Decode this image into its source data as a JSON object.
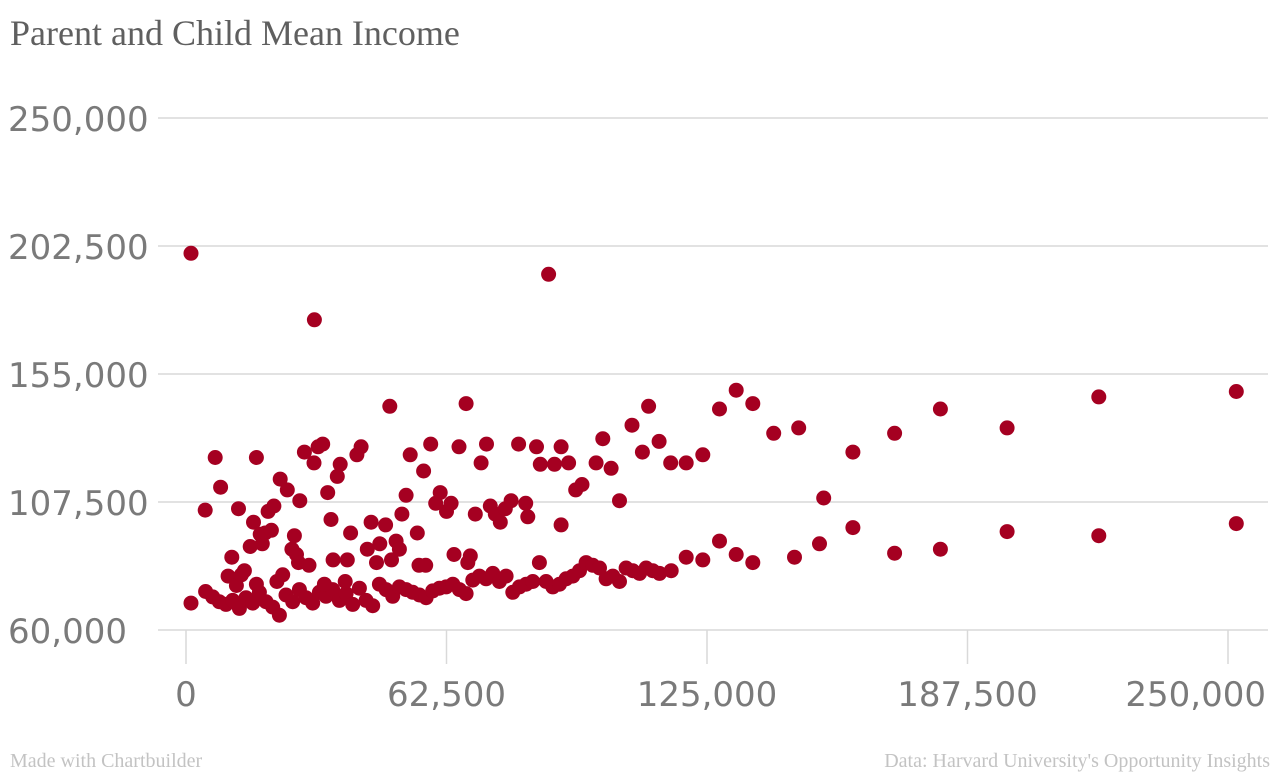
{
  "title": "Parent and Child Mean Income",
  "credit": "Made with Chartbuilder",
  "source": "Data: Harvard University's Opportunity Insights",
  "colors": {
    "point": "#a50021",
    "grid": "#d9d9d9",
    "text": "#7a7a7a"
  },
  "chart_data": {
    "type": "scatter",
    "title": "Parent and Child Mean Income",
    "xlabel": "",
    "ylabel": "",
    "xlim": [
      0,
      250000
    ],
    "ylim": [
      60000,
      250000
    ],
    "x_ticks": [
      0,
      62500,
      125000,
      187500,
      250000
    ],
    "y_ticks": [
      60000,
      107500,
      155000,
      202500,
      250000
    ],
    "x_tick_labels": [
      "0",
      "62,500",
      "125,000",
      "187,500",
      "250,000"
    ],
    "y_tick_labels": [
      "60,000",
      "107,500",
      "155,000",
      "202,500",
      "250,000"
    ],
    "grid": "horizontal",
    "legend": "none",
    "points": [
      [
        1200,
        199800
      ],
      [
        30800,
        175100
      ],
      [
        87000,
        192000
      ],
      [
        1200,
        70000
      ],
      [
        4700,
        74300
      ],
      [
        6400,
        72300
      ],
      [
        8000,
        70500
      ],
      [
        9600,
        69500
      ],
      [
        11200,
        71000
      ],
      [
        12800,
        68000
      ],
      [
        14400,
        72000
      ],
      [
        16000,
        70000
      ],
      [
        17600,
        74000
      ],
      [
        19200,
        70500
      ],
      [
        20800,
        68500
      ],
      [
        22400,
        65500
      ],
      [
        24000,
        73000
      ],
      [
        25600,
        70500
      ],
      [
        27200,
        75000
      ],
      [
        28800,
        72000
      ],
      [
        30400,
        70000
      ],
      [
        32000,
        74000
      ],
      [
        33600,
        72500
      ],
      [
        35200,
        75000
      ],
      [
        36800,
        71000
      ],
      [
        38400,
        73500
      ],
      [
        40000,
        69500
      ],
      [
        41600,
        75500
      ],
      [
        43200,
        71000
      ],
      [
        44800,
        69000
      ],
      [
        46400,
        77000
      ],
      [
        48000,
        75000
      ],
      [
        49600,
        72500
      ],
      [
        51200,
        76000
      ],
      [
        52800,
        75000
      ],
      [
        54400,
        74000
      ],
      [
        56000,
        73000
      ],
      [
        57600,
        72000
      ],
      [
        59200,
        74500
      ],
      [
        60800,
        75500
      ],
      [
        62400,
        76000
      ],
      [
        64000,
        77000
      ],
      [
        65600,
        75000
      ],
      [
        67200,
        73500
      ],
      [
        68800,
        78500
      ],
      [
        70400,
        80000
      ],
      [
        72000,
        79000
      ],
      [
        73600,
        81000
      ],
      [
        75200,
        78000
      ],
      [
        76800,
        80000
      ],
      [
        78400,
        74000
      ],
      [
        80000,
        76000
      ],
      [
        81600,
        77000
      ],
      [
        83200,
        78000
      ],
      [
        84800,
        85000
      ],
      [
        86400,
        78000
      ],
      [
        88000,
        76000
      ],
      [
        89600,
        77000
      ],
      [
        91200,
        79000
      ],
      [
        92800,
        80000
      ],
      [
        94400,
        82000
      ],
      [
        96000,
        85000
      ],
      [
        97600,
        84000
      ],
      [
        99200,
        83000
      ],
      [
        100800,
        79000
      ],
      [
        102400,
        80000
      ],
      [
        104000,
        78000
      ],
      [
        105600,
        83000
      ],
      [
        107200,
        82000
      ],
      [
        108800,
        81000
      ],
      [
        110400,
        83000
      ],
      [
        112000,
        82000
      ],
      [
        113600,
        81000
      ],
      [
        116400,
        82000
      ],
      [
        120000,
        87000
      ],
      [
        124000,
        86000
      ],
      [
        128000,
        93000
      ],
      [
        132000,
        88000
      ],
      [
        136000,
        85000
      ],
      [
        146000,
        87000
      ],
      [
        152000,
        92000
      ],
      [
        160000,
        98000
      ],
      [
        170000,
        88500
      ],
      [
        181000,
        90000
      ],
      [
        197000,
        96500
      ],
      [
        219000,
        95000
      ],
      [
        252000,
        99500
      ],
      [
        4600,
        104500
      ],
      [
        7000,
        124000
      ],
      [
        8300,
        113000
      ],
      [
        10100,
        80000
      ],
      [
        11000,
        87000
      ],
      [
        12100,
        76500
      ],
      [
        12600,
        105000
      ],
      [
        13300,
        80500
      ],
      [
        14000,
        82000
      ],
      [
        15400,
        91000
      ],
      [
        16200,
        100000
      ],
      [
        16900,
        77000
      ],
      [
        16900,
        124000
      ],
      [
        17800,
        95500
      ],
      [
        18300,
        92000
      ],
      [
        19000,
        96000
      ],
      [
        19700,
        104000
      ],
      [
        20500,
        97000
      ],
      [
        21100,
        106000
      ],
      [
        21800,
        78000
      ],
      [
        22600,
        116000
      ],
      [
        23200,
        80500
      ],
      [
        24300,
        112000
      ],
      [
        25400,
        90000
      ],
      [
        26000,
        95000
      ],
      [
        26500,
        88000
      ],
      [
        27000,
        85000
      ],
      [
        27300,
        108000
      ],
      [
        28400,
        126000
      ],
      [
        29500,
        84000
      ],
      [
        30700,
        122000
      ],
      [
        31700,
        128000
      ],
      [
        32800,
        129000
      ],
      [
        33200,
        77000
      ],
      [
        34000,
        111000
      ],
      [
        34800,
        101000
      ],
      [
        35300,
        86000
      ],
      [
        36300,
        117000
      ],
      [
        37000,
        121500
      ],
      [
        38200,
        78000
      ],
      [
        38700,
        86000
      ],
      [
        39500,
        96000
      ],
      [
        41000,
        125000
      ],
      [
        42000,
        128000
      ],
      [
        43500,
        90000
      ],
      [
        44400,
        100000
      ],
      [
        45700,
        85000
      ],
      [
        46500,
        92000
      ],
      [
        47900,
        99000
      ],
      [
        48900,
        143000
      ],
      [
        49300,
        86000
      ],
      [
        50400,
        93000
      ],
      [
        51200,
        90000
      ],
      [
        51800,
        103000
      ],
      [
        52800,
        110000
      ],
      [
        53800,
        125000
      ],
      [
        55500,
        96000
      ],
      [
        55900,
        84000
      ],
      [
        57000,
        119000
      ],
      [
        57500,
        84000
      ],
      [
        58700,
        129000
      ],
      [
        59900,
        107000
      ],
      [
        61000,
        111000
      ],
      [
        62500,
        104000
      ],
      [
        63600,
        107000
      ],
      [
        64300,
        88000
      ],
      [
        65500,
        128000
      ],
      [
        67200,
        144000
      ],
      [
        67600,
        85000
      ],
      [
        68200,
        87500
      ],
      [
        69400,
        103000
      ],
      [
        70800,
        122000
      ],
      [
        72100,
        129000
      ],
      [
        73000,
        106000
      ],
      [
        74200,
        103000
      ],
      [
        75400,
        100000
      ],
      [
        76600,
        105000
      ],
      [
        78000,
        108000
      ],
      [
        79800,
        129000
      ],
      [
        81500,
        107000
      ],
      [
        82000,
        102000
      ],
      [
        84100,
        128000
      ],
      [
        85000,
        121500
      ],
      [
        88400,
        121500
      ],
      [
        90000,
        128000
      ],
      [
        90000,
        99000
      ],
      [
        91800,
        122000
      ],
      [
        93500,
        112000
      ],
      [
        95000,
        114000
      ],
      [
        98400,
        122000
      ],
      [
        100000,
        131000
      ],
      [
        102000,
        120000
      ],
      [
        104000,
        108000
      ],
      [
        107000,
        136000
      ],
      [
        109500,
        126000
      ],
      [
        111000,
        143000
      ],
      [
        113500,
        130000
      ],
      [
        116300,
        122000
      ],
      [
        120000,
        122000
      ],
      [
        124000,
        125000
      ],
      [
        128000,
        142000
      ],
      [
        132000,
        149000
      ],
      [
        136000,
        144000
      ],
      [
        141000,
        133000
      ],
      [
        147000,
        135000
      ],
      [
        153000,
        109000
      ],
      [
        160000,
        126000
      ],
      [
        170000,
        133000
      ],
      [
        181000,
        142000
      ],
      [
        197000,
        135000
      ],
      [
        219000,
        146500
      ],
      [
        252000,
        148500
      ]
    ]
  }
}
